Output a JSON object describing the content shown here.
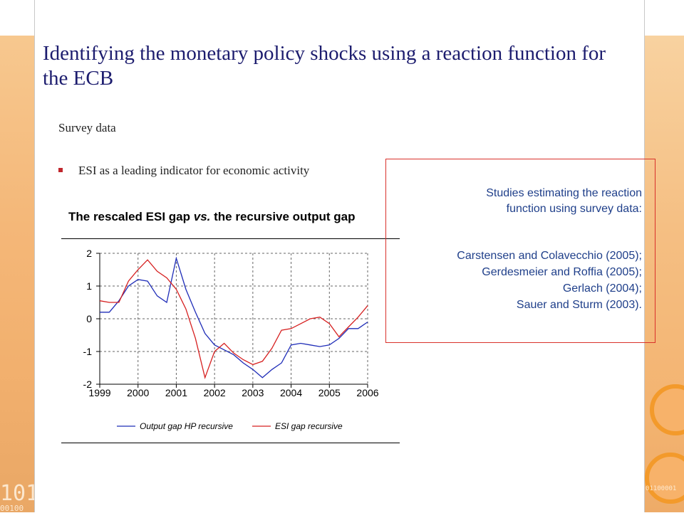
{
  "slide": {
    "title": "Identifying the monetary policy shocks using a reaction function for the ECB",
    "subtitle": "Survey data",
    "bullet": "ESI as a leading indicator for economic activity"
  },
  "note": {
    "heading_lines": [
      "Studies estimating the reaction",
      "function using survey data:"
    ],
    "studies": [
      "Carstensen and Colavecchio (2005);",
      "Gerdesmeier and Roffia (2005);",
      "Gerlach (2004);",
      "Sauer and Sturm (2003)."
    ]
  },
  "decor": {
    "bits_left": "101",
    "bits_left_small": "00100",
    "bits_right": "01100001"
  },
  "colors": {
    "title": "#1c1c6e",
    "note_text": "#1f3f8a",
    "note_border": "#d9312b",
    "series_output": "#1f2db8",
    "series_esi": "#d62020",
    "accent": "#f39a2b"
  },
  "chart_data": {
    "type": "line",
    "title_parts": [
      "The rescaled ESI gap ",
      "vs.",
      " the recursive output gap"
    ],
    "x_ticks": [
      "1999",
      "2000",
      "2001",
      "2002",
      "2003",
      "2004",
      "2005",
      "2006"
    ],
    "y_ticks": [
      "2",
      "1",
      "0",
      "-1",
      "-2"
    ],
    "xlim": [
      1999,
      2006
    ],
    "ylim": [
      -2,
      2
    ],
    "grid": true,
    "legend_placement": "bottom",
    "series": [
      {
        "name": "Output gap HP recursive",
        "x": [
          1999,
          1999.25,
          1999.5,
          1999.75,
          2000,
          2000.25,
          2000.5,
          2000.75,
          2001,
          2001.25,
          2001.5,
          2001.75,
          2002,
          2002.25,
          2002.5,
          2002.75,
          2003,
          2003.25,
          2003.5,
          2003.75,
          2004,
          2004.25,
          2004.5,
          2004.75,
          2005,
          2005.25,
          2005.5,
          2005.75,
          2006
        ],
        "y": [
          0.2,
          0.2,
          0.55,
          1.0,
          1.2,
          1.15,
          0.7,
          0.5,
          1.85,
          0.9,
          0.2,
          -0.45,
          -0.8,
          -0.95,
          -1.1,
          -1.35,
          -1.55,
          -1.8,
          -1.55,
          -1.35,
          -0.8,
          -0.75,
          -0.8,
          -0.85,
          -0.8,
          -0.6,
          -0.3,
          -0.3,
          -0.1
        ]
      },
      {
        "name": "ESI gap recursive",
        "x": [
          1999,
          1999.25,
          1999.5,
          1999.75,
          2000,
          2000.25,
          2000.5,
          2000.75,
          2001,
          2001.25,
          2001.5,
          2001.75,
          2002,
          2002.25,
          2002.5,
          2002.75,
          2003,
          2003.25,
          2003.5,
          2003.75,
          2004,
          2004.25,
          2004.5,
          2004.75,
          2005,
          2005.25,
          2005.5,
          2005.75,
          2006
        ],
        "y": [
          0.55,
          0.5,
          0.5,
          1.15,
          1.5,
          1.8,
          1.45,
          1.25,
          0.9,
          0.3,
          -0.6,
          -1.8,
          -1.0,
          -0.75,
          -1.05,
          -1.25,
          -1.4,
          -1.3,
          -0.9,
          -0.35,
          -0.3,
          -0.15,
          0.0,
          0.05,
          -0.15,
          -0.55,
          -0.25,
          0.05,
          0.4
        ]
      }
    ]
  }
}
